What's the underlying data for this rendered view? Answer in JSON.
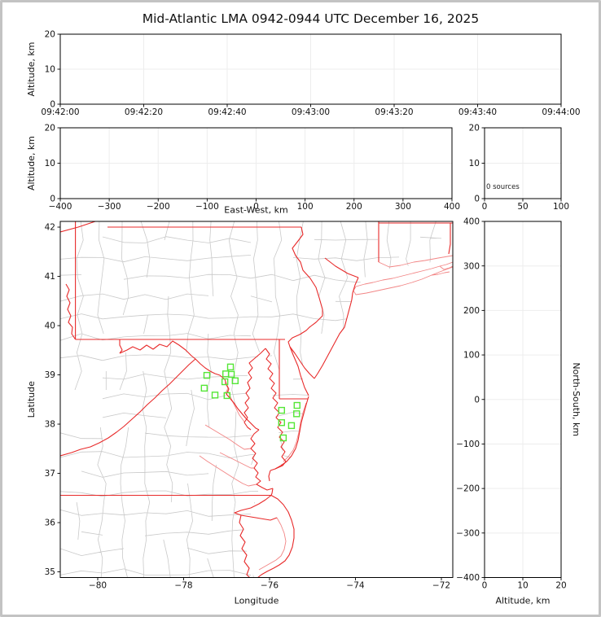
{
  "title": "Mid-Atlantic LMA 0942-0944 UTC December 16, 2025",
  "colors": {
    "state_border": "#e82a2a",
    "shoreline_light": "#f28585",
    "county_line": "#c9c9c9",
    "station_marker": "#55e636",
    "gridline": "#ededed",
    "frame": "#000000",
    "page_border": "#c3c3c3",
    "background": "#ffffff"
  },
  "chart_data": [
    {
      "id": "time_height",
      "type": "scatter",
      "description": "Lightning source altitude vs time (no sources plotted)",
      "xlabel": "",
      "ylabel": "Altitude, km",
      "x_tick_values": [
        0,
        20,
        40,
        60,
        80,
        100,
        120
      ],
      "x_tick_labels": [
        "09:42:00",
        "09:42:20",
        "09:42:40",
        "09:43:00",
        "09:43:20",
        "09:43:40",
        "09:44:00"
      ],
      "xlim": [
        0,
        120
      ],
      "y_tick_values": [
        0,
        10,
        20
      ],
      "y_tick_labels": [
        "0",
        "10",
        "20"
      ],
      "ylim": [
        0,
        20
      ],
      "grid": true,
      "points": []
    },
    {
      "id": "eastwest_height",
      "type": "scatter",
      "description": "Altitude vs east-west distance (no sources plotted)",
      "xlabel": "East-West, km",
      "ylabel": "Altitude, km",
      "x_tick_values": [
        -400,
        -300,
        -200,
        -100,
        0,
        100,
        200,
        300,
        400
      ],
      "x_tick_labels": [
        "−400",
        "−300",
        "−200",
        "−100",
        "0",
        "100",
        "200",
        "300",
        "400"
      ],
      "xlim": [
        -400,
        400
      ],
      "y_tick_values": [
        0,
        10,
        20
      ],
      "y_tick_labels": [
        "0",
        "10",
        "20"
      ],
      "ylim": [
        0,
        20
      ],
      "grid": true,
      "points": []
    },
    {
      "id": "altitude_histogram",
      "type": "line",
      "description": "Source-count histogram vs altitude",
      "xlabel": "",
      "ylabel": "",
      "annotation": "0 sources",
      "x_tick_values": [
        0,
        50,
        100
      ],
      "x_tick_labels": [
        "0",
        "50",
        "100"
      ],
      "xlim": [
        0,
        100
      ],
      "y_tick_values": [
        0,
        10,
        20
      ],
      "y_tick_labels": [
        "0",
        "10",
        "20"
      ],
      "ylim": [
        0,
        20
      ],
      "grid": true,
      "points": []
    },
    {
      "id": "map",
      "type": "scatter",
      "description": "Plan view map with LMA station locations (green squares); no lightning sources",
      "xlabel": "Longitude",
      "ylabel": "Latitude",
      "x_tick_values": [
        -80,
        -78,
        -76,
        -74,
        -72
      ],
      "x_tick_labels": [
        "−80",
        "−78",
        "−76",
        "−74",
        "−72"
      ],
      "xlim": [
        -80.872,
        -71.735
      ],
      "y_tick_values": [
        35,
        36,
        37,
        38,
        39,
        40,
        41,
        42
      ],
      "y_tick_labels": [
        "35",
        "36",
        "37",
        "38",
        "39",
        "40",
        "41",
        "42"
      ],
      "ylim": [
        34.885,
        42.116
      ],
      "grid": false,
      "stations_lonlat": [
        [
          -76.91,
          39.16
        ],
        [
          -77.46,
          38.99
        ],
        [
          -77.02,
          39.02
        ],
        [
          -76.89,
          39.01
        ],
        [
          -76.8,
          38.88
        ],
        [
          -77.04,
          38.86
        ],
        [
          -77.52,
          38.73
        ],
        [
          -77.27,
          38.59
        ],
        [
          -76.99,
          38.58
        ],
        [
          -75.72,
          38.28
        ],
        [
          -75.36,
          38.38
        ],
        [
          -75.37,
          38.21
        ],
        [
          -75.72,
          38.03
        ],
        [
          -75.49,
          37.97
        ],
        [
          -75.68,
          37.72
        ]
      ],
      "points": []
    },
    {
      "id": "northsouth_height",
      "type": "scatter",
      "description": "North-south distance vs altitude (no sources plotted)",
      "xlabel": "Altitude, km",
      "ylabel_right": "North-South, km",
      "x_tick_values": [
        0,
        10,
        20
      ],
      "x_tick_labels": [
        "0",
        "10",
        "20"
      ],
      "xlim": [
        0,
        20
      ],
      "y_tick_values": [
        400,
        300,
        200,
        100,
        0,
        -100,
        -200,
        -300,
        -400
      ],
      "y_tick_labels": [
        "400",
        "300",
        "200",
        "100",
        "0",
        "−100",
        "−200",
        "−300",
        "−400"
      ],
      "ylim": [
        -400,
        400
      ],
      "grid": true,
      "points": []
    }
  ]
}
